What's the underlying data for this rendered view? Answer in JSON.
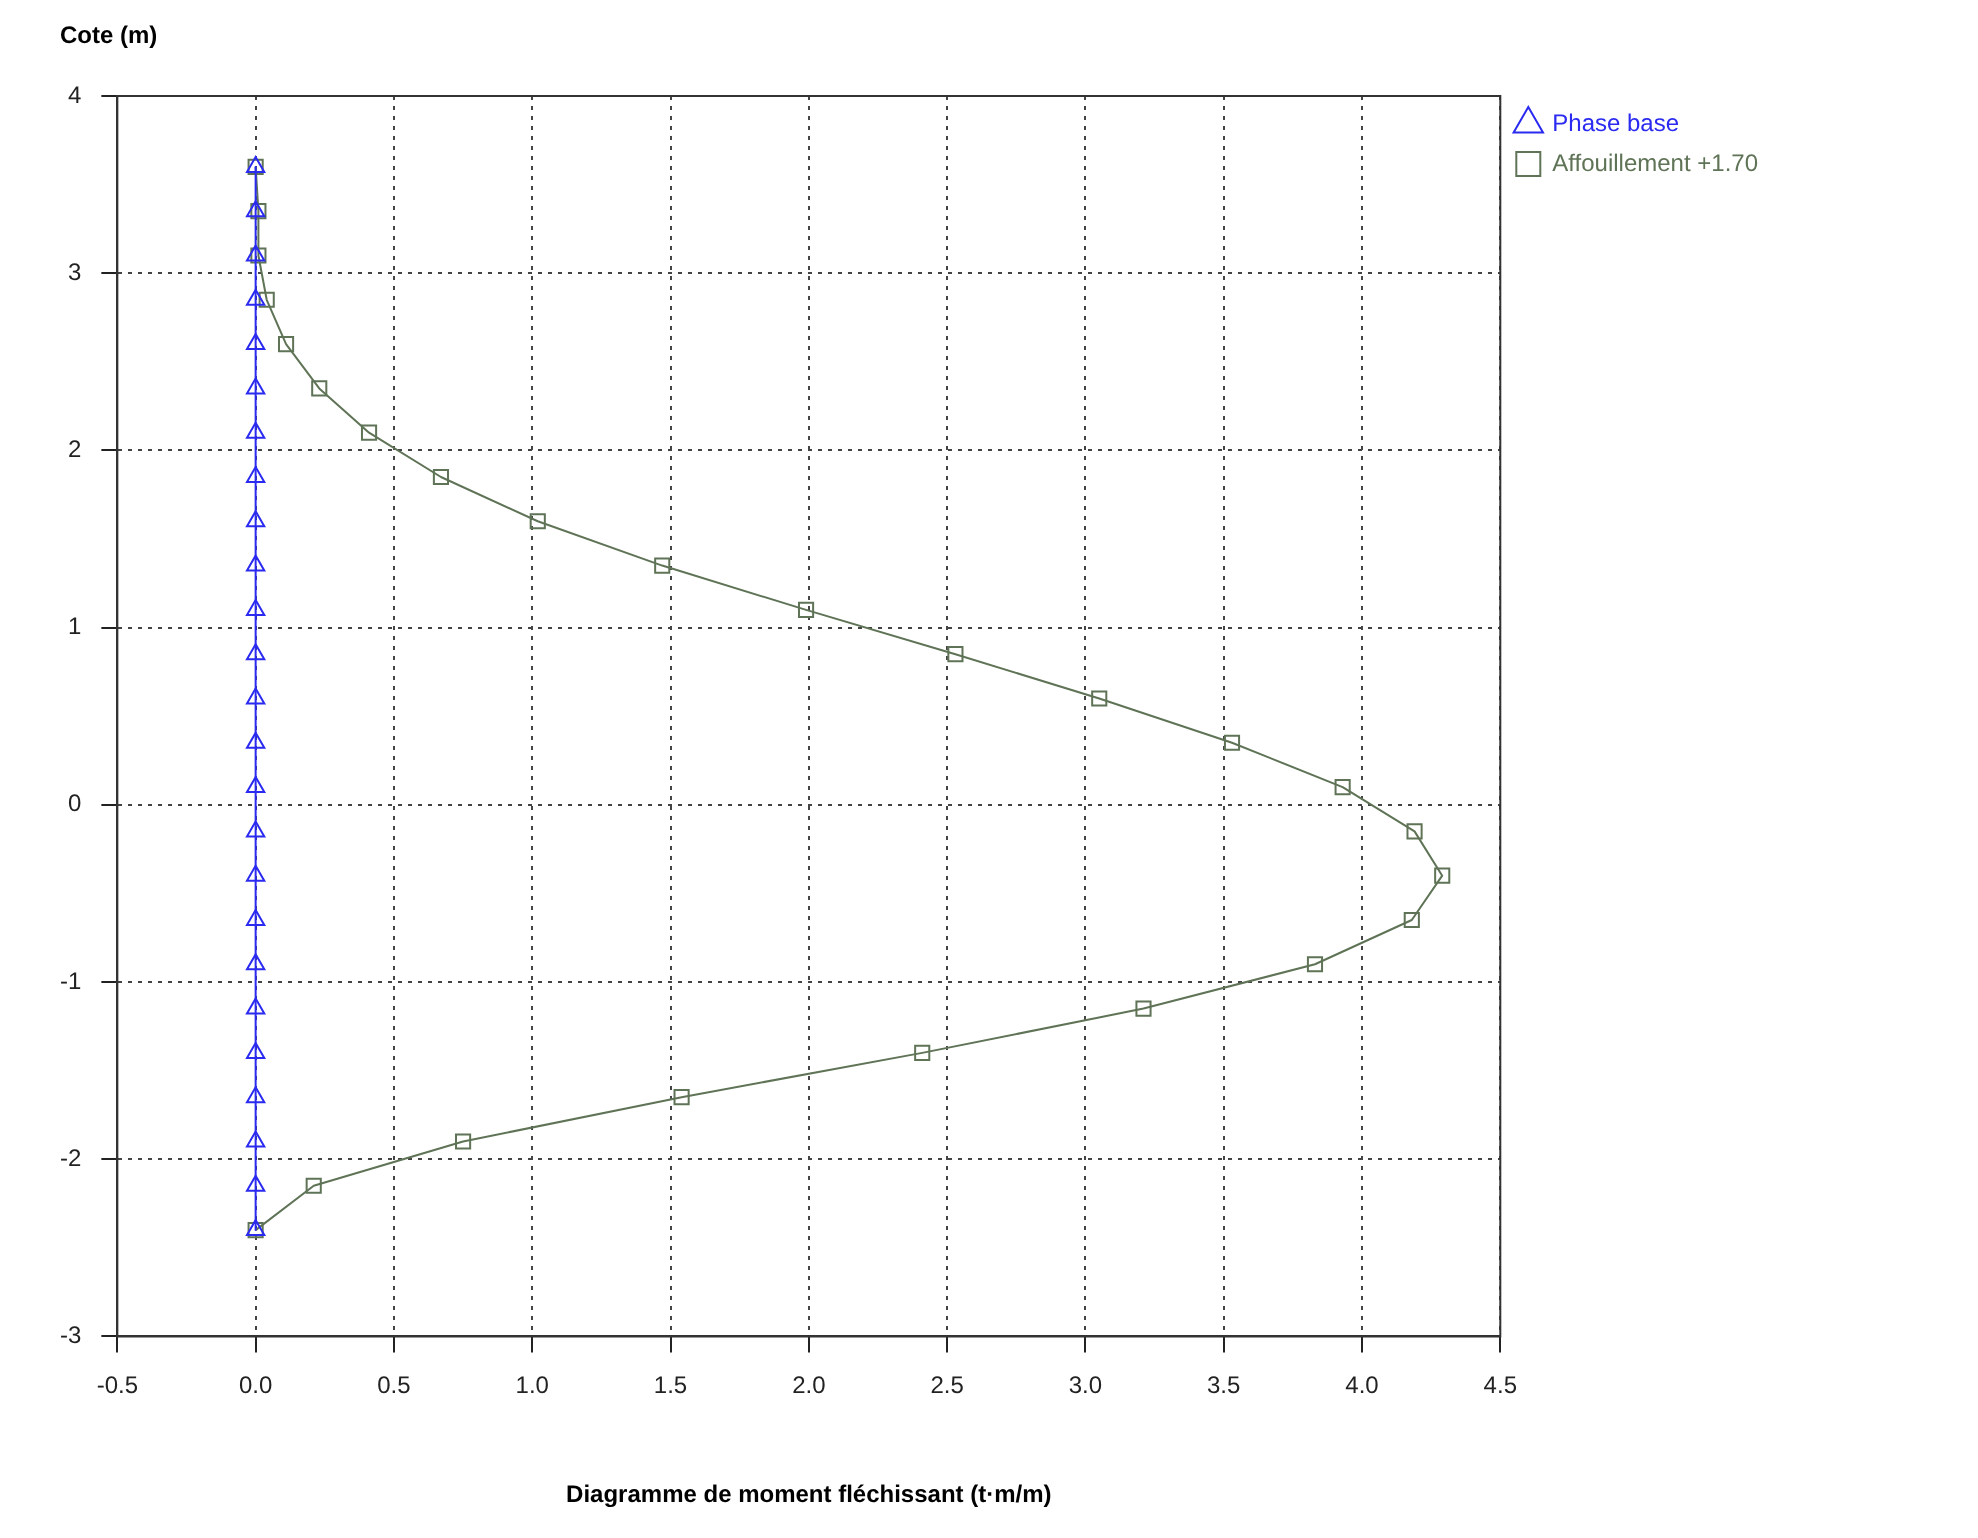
{
  "chart_data": {
    "type": "line",
    "xlabel": "Diagramme de moment fléchissant (t·m/m)",
    "ylabel": "Cote (m)",
    "xlim": [
      -0.5,
      4.5
    ],
    "xticks": [
      -0.5,
      {
        "value": 0,
        "label": "0.0"
      },
      0.5,
      {
        "value": 1,
        "label": "1.0"
      },
      1.5,
      {
        "value": 2,
        "label": "2.0"
      },
      2.5,
      {
        "value": 3,
        "label": "3.0"
      },
      3.5,
      {
        "value": 4,
        "label": "4.0"
      },
      4.5
    ],
    "ylim": [
      -3,
      4
    ],
    "yticks": [
      -3,
      -2,
      -1,
      0,
      1,
      2,
      3,
      4
    ],
    "grid": true,
    "legend": "top right",
    "series": [
      {
        "name": "Phase base",
        "color": "#2a2af0",
        "marker": "triangle",
        "x": [
          0,
          0,
          0,
          0,
          0,
          0,
          0,
          0,
          0,
          0,
          0,
          0,
          0,
          0,
          0,
          0,
          0,
          0,
          0,
          0,
          0,
          0,
          0,
          0,
          0
        ],
        "values": [
          3.6,
          3.35,
          3.1,
          2.85,
          2.6,
          2.35,
          2.1,
          1.85,
          1.6,
          1.35,
          1.1,
          0.85,
          0.6,
          0.35,
          0.1,
          -0.15,
          -0.4,
          -0.65,
          -0.9,
          -1.15,
          -1.4,
          -1.65,
          -1.9,
          -2.15,
          -2.4
        ]
      },
      {
        "name": "Affouillement +1.70",
        "color": "#5f7356",
        "marker": "square",
        "x": [
          0,
          0.01,
          0.01,
          0.04,
          0.11,
          0.23,
          0.41,
          0.67,
          1.02,
          1.47,
          1.99,
          2.53,
          3.05,
          3.53,
          3.93,
          4.19,
          4.29,
          4.18,
          3.83,
          3.21,
          2.41,
          1.54,
          0.75,
          0.21,
          0
        ],
        "values": [
          3.6,
          3.35,
          3.1,
          2.85,
          2.6,
          2.35,
          2.1,
          1.85,
          1.6,
          1.35,
          1.1,
          0.85,
          0.6,
          0.35,
          0.1,
          -0.15,
          -0.4,
          -0.65,
          -0.9,
          -1.15,
          -1.4,
          -1.65,
          -1.9,
          -2.15,
          -2.4
        ]
      }
    ]
  }
}
